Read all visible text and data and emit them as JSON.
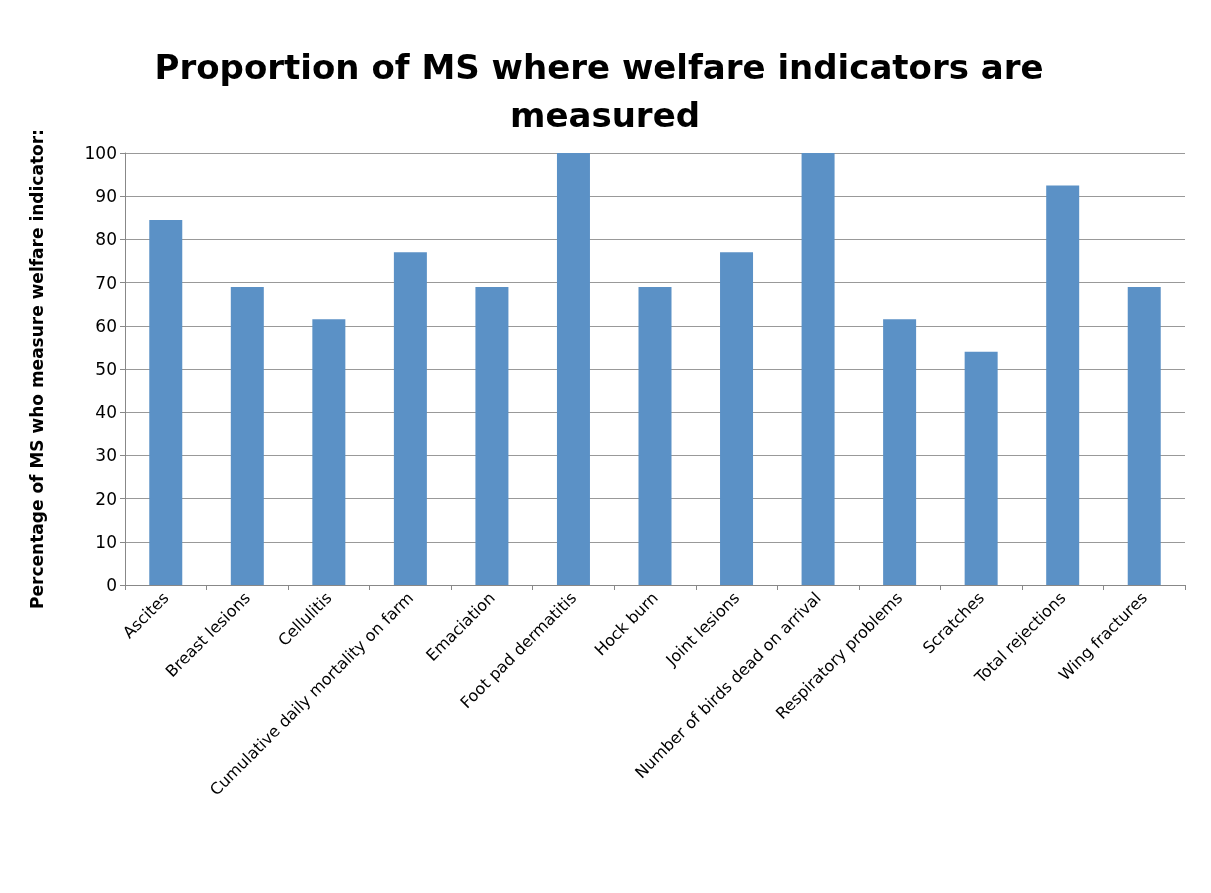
{
  "chart_data": {
    "type": "bar",
    "title": "Proportion of MS where welfare indicators are measured",
    "ylabel": "Percentage of MS who measure welfare indicator:",
    "categories": [
      "Ascites",
      "Breast lesions",
      "Cellulitis",
      "Cumulative daily mortality on farm",
      "Emaciation",
      "Foot pad dermatitis",
      "Hock burn",
      "Joint lesions",
      "Number of birds dead on arrival",
      "Respiratory problems",
      "Scratches",
      "Total rejections",
      "Wing fractures"
    ],
    "values": [
      84.5,
      69,
      61.5,
      77,
      69,
      100,
      69,
      77,
      100,
      61.5,
      54,
      92.5,
      69
    ],
    "color": "#5b91c6",
    "ylim": [
      0,
      100
    ],
    "yticks": [
      0,
      10,
      20,
      30,
      40,
      50,
      60,
      70,
      80,
      90,
      100
    ],
    "grid": "y"
  }
}
